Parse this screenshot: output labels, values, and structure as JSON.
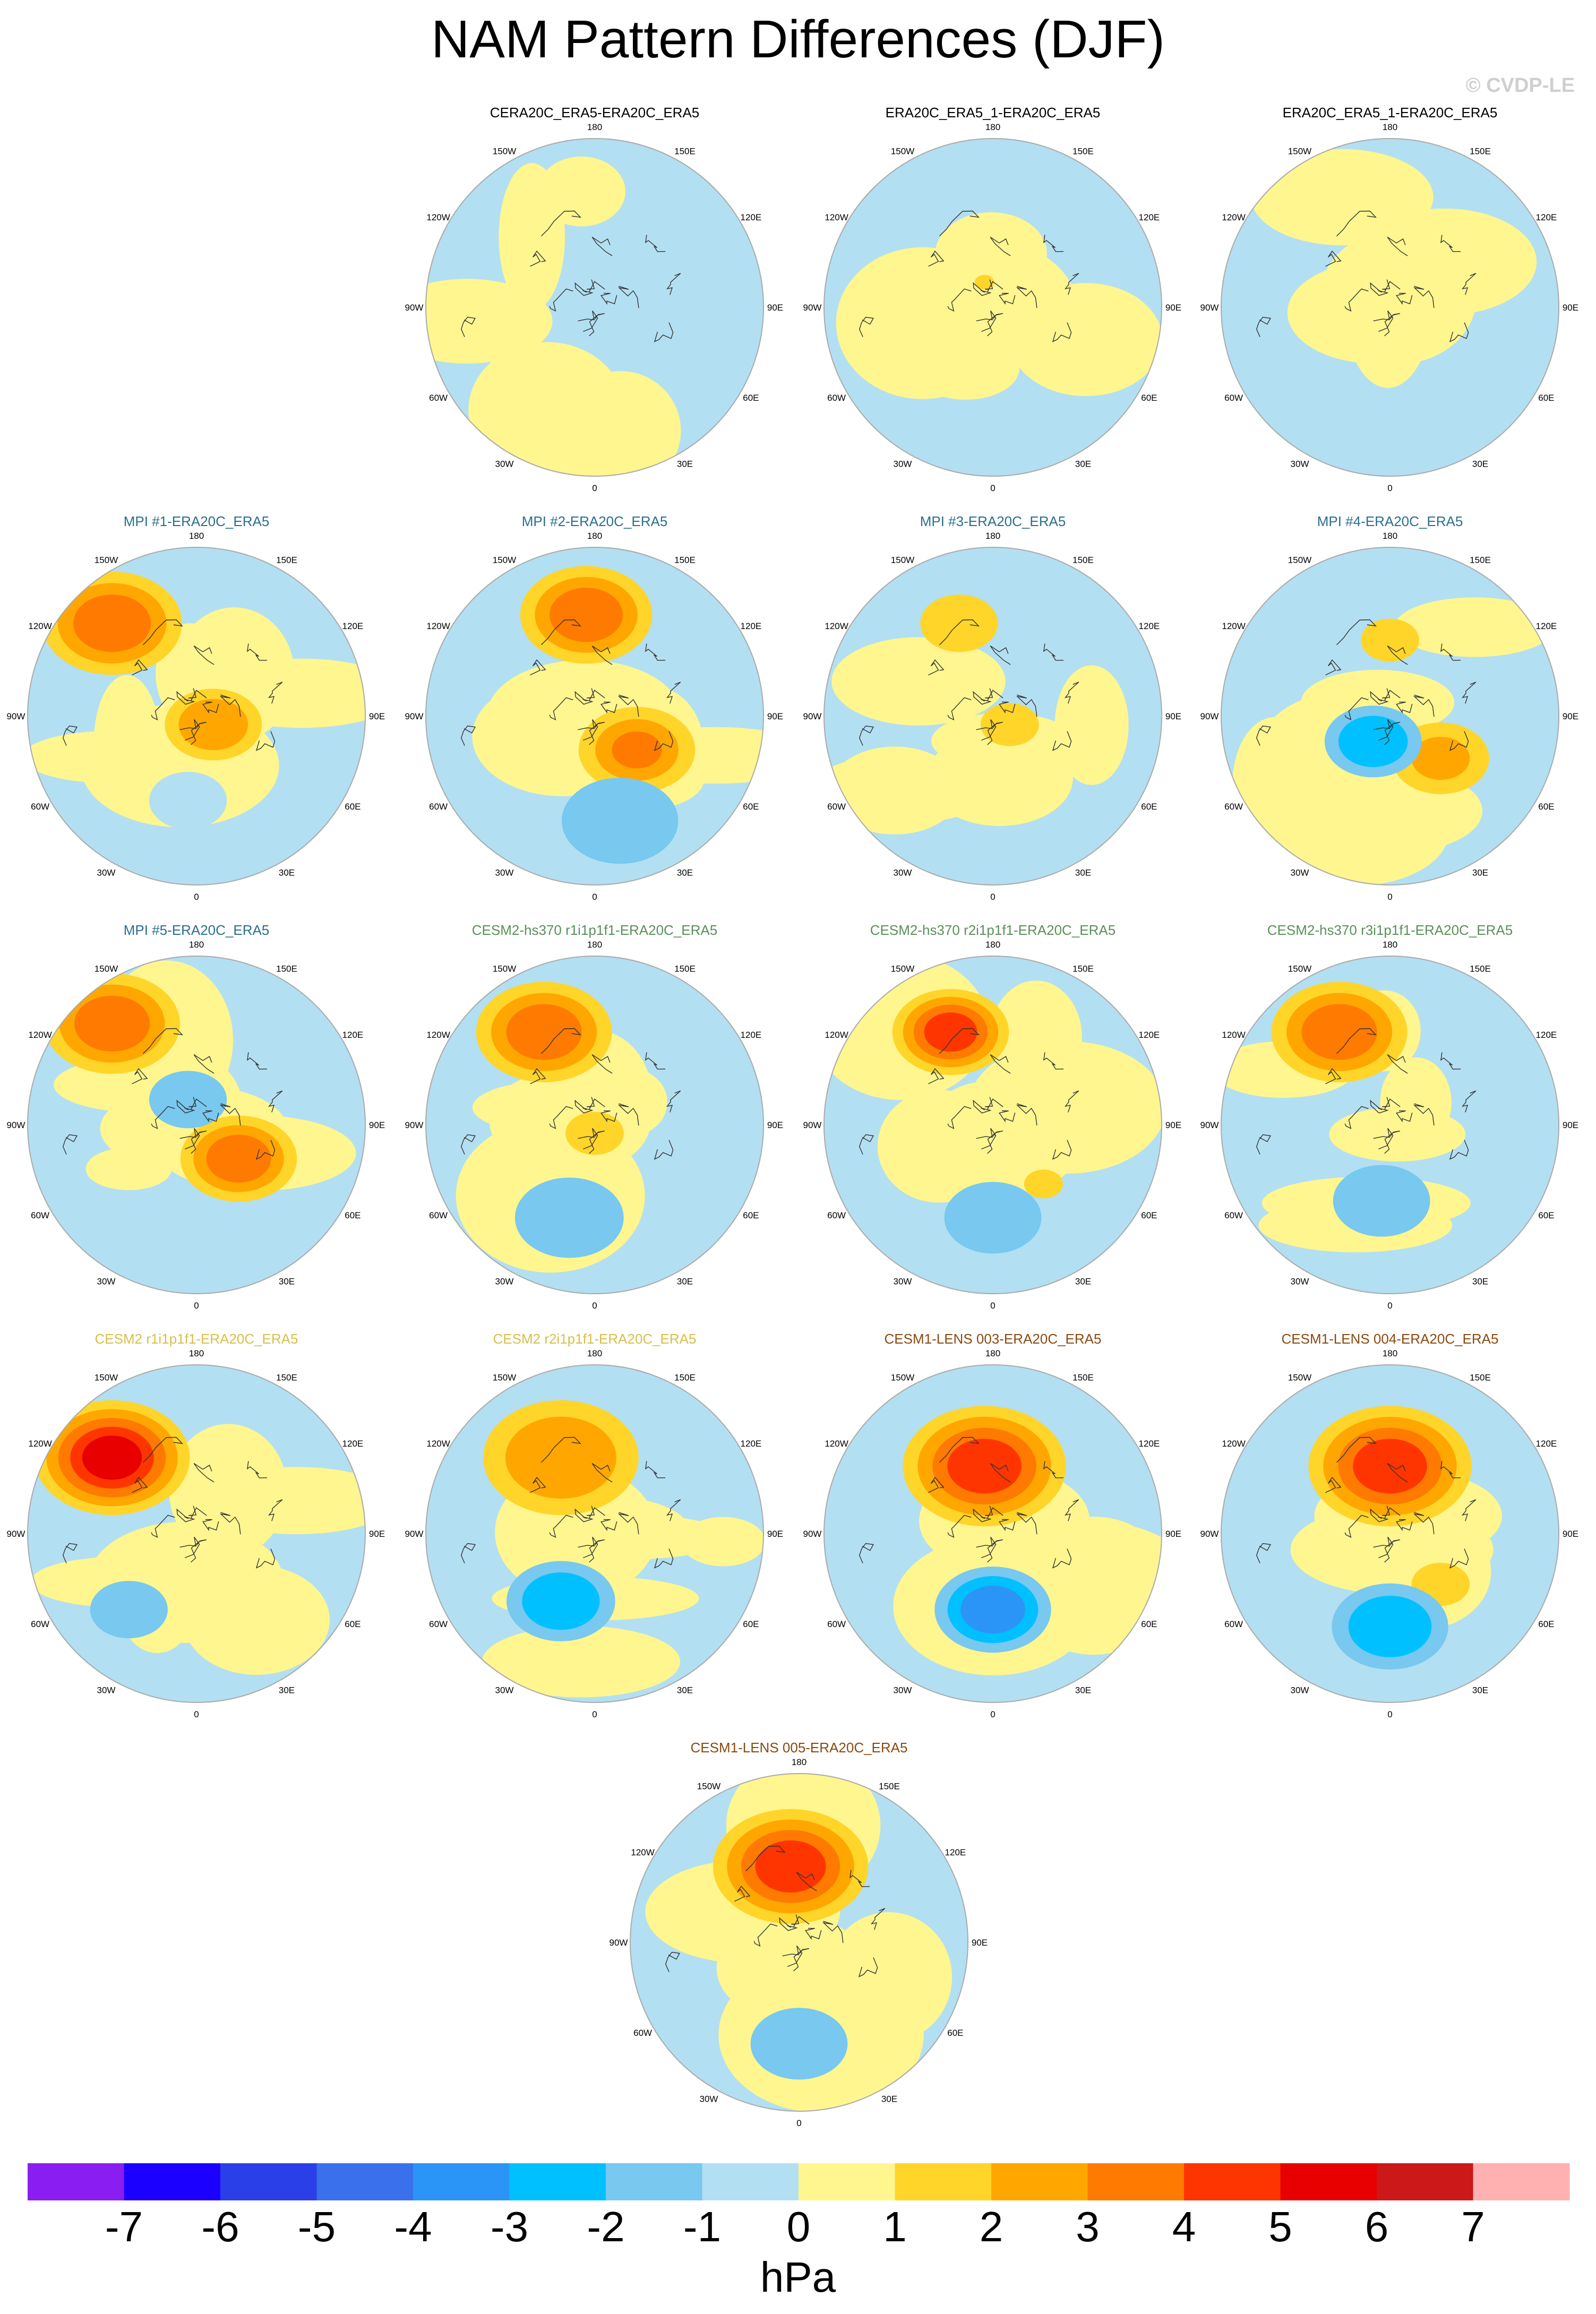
{
  "title": "NAM Pattern Differences (DJF)",
  "credit": "© CVDP-LE",
  "colors": {
    "group_reanalysis": "#000000",
    "group_mpi": "#2a6f8f",
    "group_cesm2_hs370": "#5a8f5a",
    "group_cesm2": "#d8bf4a",
    "group_cesm1": "#8a4a10",
    "coast": "#333333",
    "rim": "#aaaaaa"
  },
  "lon_labels": [
    "180",
    "150E",
    "120E",
    "90E",
    "60E",
    "30E",
    "0",
    "30W",
    "60W",
    "90W",
    "120W",
    "150W"
  ],
  "panels": [
    {
      "title": "CERA20C_ERA5-ERA20C_ERA5",
      "group": "reanalysis",
      "highs": [],
      "lows": []
    },
    {
      "title": "ERA20C_ERA5_1-ERA20C_ERA5",
      "group": "reanalysis",
      "highs": [
        [
          -0.05,
          -0.15,
          0.05,
          1
        ]
      ],
      "lows": []
    },
    {
      "title": "ERA20C_ERA5_1-ERA20C_ERA5",
      "group": "reanalysis",
      "highs": [],
      "lows": []
    },
    {
      "title": "MPI #1-ERA20C_ERA5",
      "group": "mpi",
      "highs": [
        [
          -0.5,
          -0.55,
          0.36,
          3.5
        ],
        [
          0.1,
          0.05,
          0.25,
          2.5
        ]
      ],
      "lows": [
        [
          -0.05,
          0.5,
          0.2,
          -1
        ]
      ]
    },
    {
      "title": "MPI #2-ERA20C_ERA5",
      "group": "mpi",
      "highs": [
        [
          -0.05,
          -0.6,
          0.34,
          3.5
        ],
        [
          0.25,
          0.2,
          0.3,
          3
        ]
      ],
      "lows": [
        [
          0.15,
          0.62,
          0.3,
          -2
        ]
      ]
    },
    {
      "title": "MPI #3-ERA20C_ERA5",
      "group": "mpi",
      "highs": [
        [
          -0.2,
          -0.55,
          0.2,
          1.5
        ],
        [
          0.1,
          0.05,
          0.15,
          1.5
        ]
      ],
      "lows": []
    },
    {
      "title": "MPI #4-ERA20C_ERA5",
      "group": "mpi",
      "highs": [
        [
          0.3,
          0.25,
          0.25,
          2
        ],
        [
          0,
          -0.45,
          0.15,
          1
        ]
      ],
      "lows": [
        [
          -0.1,
          0.15,
          0.25,
          -3
        ]
      ]
    },
    {
      "title": "MPI #5-ERA20C_ERA5",
      "group": "mpi",
      "highs": [
        [
          -0.5,
          -0.6,
          0.35,
          3.5
        ],
        [
          0.25,
          0.2,
          0.3,
          3.5
        ]
      ],
      "lows": [
        [
          -0.05,
          -0.15,
          0.2,
          -1.5
        ]
      ]
    },
    {
      "title": "CESM2-hs370 r1i1p1f1-ERA20C_ERA5",
      "group": "cesm2_hs370",
      "highs": [
        [
          -0.3,
          -0.55,
          0.35,
          3.5
        ],
        [
          0,
          0.05,
          0.15,
          1.5
        ]
      ],
      "lows": [
        [
          -0.15,
          0.55,
          0.28,
          -2
        ]
      ]
    },
    {
      "title": "CESM2-hs370 r2i1p1f1-ERA20C_ERA5",
      "group": "cesm2_hs370",
      "highs": [
        [
          -0.25,
          -0.55,
          0.3,
          4.5
        ],
        [
          0.3,
          0.35,
          0.1,
          1
        ]
      ],
      "lows": [
        [
          0,
          0.55,
          0.25,
          -2
        ]
      ]
    },
    {
      "title": "CESM2-hs370 r3i1p1f1-ERA20C_ERA5",
      "group": "cesm2_hs370",
      "highs": [
        [
          -0.3,
          -0.55,
          0.35,
          3.5
        ]
      ],
      "lows": [
        [
          -0.05,
          0.45,
          0.25,
          -1.5
        ]
      ]
    },
    {
      "title": "CESM2 r1i1p1f1-ERA20C_ERA5",
      "group": "cesm2",
      "highs": [
        [
          -0.5,
          -0.45,
          0.4,
          5.5
        ]
      ],
      "lows": [
        [
          -0.4,
          0.45,
          0.2,
          -2
        ]
      ]
    },
    {
      "title": "CESM2 r2i1p1f1-ERA20C_ERA5",
      "group": "cesm2",
      "highs": [
        [
          -0.2,
          -0.45,
          0.4,
          2.5
        ]
      ],
      "lows": [
        [
          -0.2,
          0.4,
          0.28,
          -2.5
        ]
      ]
    },
    {
      "title": "CESM1-LENS 003-ERA20C_ERA5",
      "group": "cesm1",
      "highs": [
        [
          -0.05,
          -0.4,
          0.42,
          4.5
        ]
      ],
      "lows": [
        [
          0,
          0.45,
          0.3,
          -3.5
        ]
      ]
    },
    {
      "title": "CESM1-LENS 004-ERA20C_ERA5",
      "group": "cesm1",
      "highs": [
        [
          0,
          -0.4,
          0.42,
          4.5
        ],
        [
          0.3,
          0.3,
          0.15,
          1.5
        ]
      ],
      "lows": [
        [
          0,
          0.55,
          0.3,
          -2.5
        ]
      ]
    },
    {
      "title": "CESM1-LENS 005-ERA20C_ERA5",
      "group": "cesm1",
      "highs": [
        [
          -0.05,
          -0.45,
          0.4,
          4.5
        ]
      ],
      "lows": [
        [
          0,
          0.6,
          0.25,
          -2
        ]
      ]
    }
  ],
  "colorbar": {
    "colors": [
      "#8a1ef0",
      "#1c00ff",
      "#2a3fe8",
      "#3a70ec",
      "#2a95f6",
      "#00c0ff",
      "#78c8f0",
      "#b3dff2",
      "#fff68f",
      "#ffd52a",
      "#ffa700",
      "#ff7a00",
      "#ff3500",
      "#e80000",
      "#cc1818",
      "#ffb0b0"
    ],
    "labels": [
      "-7",
      "-6",
      "-5",
      "-4",
      "-3",
      "-2",
      "-1",
      "0",
      "1",
      "2",
      "3",
      "4",
      "5",
      "6",
      "7"
    ],
    "unit": "hPa"
  }
}
